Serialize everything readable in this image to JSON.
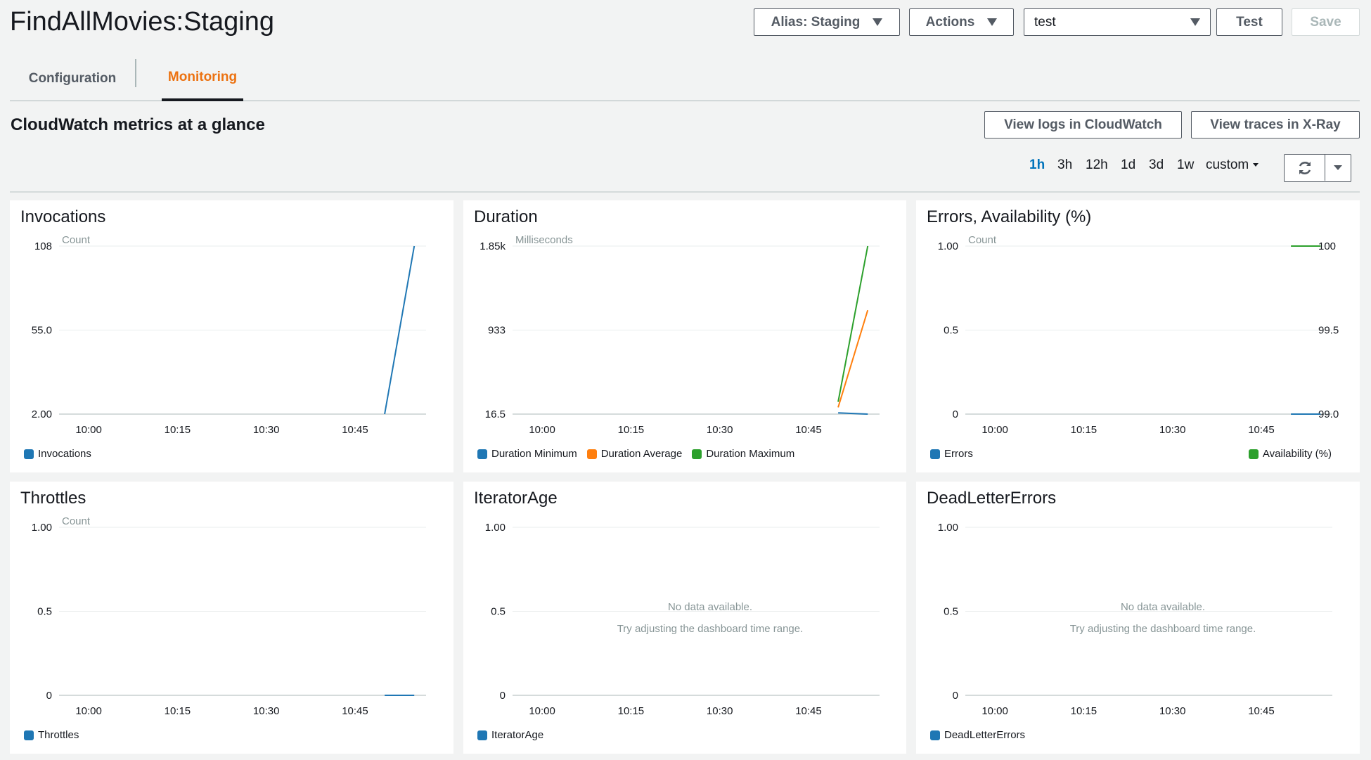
{
  "header": {
    "function_title": "FindAllMovies:Staging",
    "alias_label": "Alias: Staging",
    "actions_label": "Actions",
    "test_event_value": "test",
    "test_label": "Test",
    "save_label": "Save"
  },
  "tabs": [
    {
      "label": "Configuration",
      "active": false
    },
    {
      "label": "Monitoring",
      "active": true
    }
  ],
  "section": {
    "title": "CloudWatch metrics at a glance",
    "view_logs_label": "View logs in CloudWatch",
    "view_traces_label": "View traces in X-Ray"
  },
  "time_ranges": [
    "1h",
    "3h",
    "12h",
    "1d",
    "3d",
    "1w"
  ],
  "time_range_active": "1h",
  "time_range_custom": "custom",
  "icons": {
    "refresh": "refresh-icon",
    "dropdown": "chevron-down-icon"
  },
  "colors": {
    "blue": "#1f77b4",
    "orange": "#ff7f0e",
    "green": "#2ca02c",
    "accent": "#ec7211",
    "link": "#0073bb"
  },
  "no_data": {
    "line1": "No data available.",
    "line2": "Try adjusting the dashboard time range."
  },
  "chart_data": [
    {
      "type": "line",
      "title": "Invocations",
      "unit": "Count",
      "y_ticks": [
        "108",
        "55.0",
        "2.00"
      ],
      "ylim": [
        2,
        108
      ],
      "x_ticks": [
        "10:00",
        "10:15",
        "10:30",
        "10:45"
      ],
      "series": [
        {
          "name": "Invocations",
          "color": "#1f77b4",
          "points": [
            [
              "10:50",
              2
            ],
            [
              "10:55",
              108
            ]
          ]
        }
      ]
    },
    {
      "type": "line",
      "title": "Duration",
      "unit": "Milliseconds",
      "y_ticks": [
        "1.85k",
        "933",
        "16.5"
      ],
      "ylim": [
        16.5,
        1850
      ],
      "x_ticks": [
        "10:00",
        "10:15",
        "10:30",
        "10:45"
      ],
      "series": [
        {
          "name": "Duration Minimum",
          "color": "#1f77b4",
          "points": [
            [
              "10:50",
              30
            ],
            [
              "10:55",
              16.5
            ]
          ]
        },
        {
          "name": "Duration Average",
          "color": "#ff7f0e",
          "points": [
            [
              "10:50",
              90
            ],
            [
              "10:55",
              1150
            ]
          ]
        },
        {
          "name": "Duration Maximum",
          "color": "#2ca02c",
          "points": [
            [
              "10:50",
              150
            ],
            [
              "10:55",
              1850
            ]
          ]
        }
      ]
    },
    {
      "type": "line",
      "title": "Errors, Availability (%)",
      "unit": "Count",
      "y_ticks": [
        "1.00",
        "0.5",
        "0"
      ],
      "ylim": [
        0,
        1
      ],
      "y2_ticks": [
        "100",
        "99.5",
        "99.0"
      ],
      "y2lim": [
        99,
        100
      ],
      "x_ticks": [
        "10:00",
        "10:15",
        "10:30",
        "10:45"
      ],
      "series": [
        {
          "name": "Errors",
          "color": "#1f77b4",
          "axis": "left",
          "points": [
            [
              "10:50",
              0
            ],
            [
              "10:55",
              0
            ]
          ]
        },
        {
          "name": "Availability (%)",
          "color": "#2ca02c",
          "axis": "right",
          "points": [
            [
              "10:50",
              100
            ],
            [
              "10:55",
              100
            ]
          ]
        }
      ]
    },
    {
      "type": "line",
      "title": "Throttles",
      "unit": "Count",
      "y_ticks": [
        "1.00",
        "0.5",
        "0"
      ],
      "ylim": [
        0,
        1
      ],
      "x_ticks": [
        "10:00",
        "10:15",
        "10:30",
        "10:45"
      ],
      "series": [
        {
          "name": "Throttles",
          "color": "#1f77b4",
          "points": [
            [
              "10:50",
              0
            ],
            [
              "10:55",
              0
            ]
          ]
        }
      ]
    },
    {
      "type": "line",
      "title": "IteratorAge",
      "unit": "",
      "y_ticks": [
        "1.00",
        "0.5",
        "0"
      ],
      "ylim": [
        0,
        1
      ],
      "x_ticks": [
        "10:00",
        "10:15",
        "10:30",
        "10:45"
      ],
      "no_data": true,
      "series": [
        {
          "name": "IteratorAge",
          "color": "#1f77b4",
          "points": []
        }
      ]
    },
    {
      "type": "line",
      "title": "DeadLetterErrors",
      "unit": "",
      "y_ticks": [
        "1.00",
        "0.5",
        "0"
      ],
      "ylim": [
        0,
        1
      ],
      "x_ticks": [
        "10:00",
        "10:15",
        "10:30",
        "10:45"
      ],
      "no_data": true,
      "series": [
        {
          "name": "DeadLetterErrors",
          "color": "#1f77b4",
          "points": []
        }
      ]
    }
  ]
}
